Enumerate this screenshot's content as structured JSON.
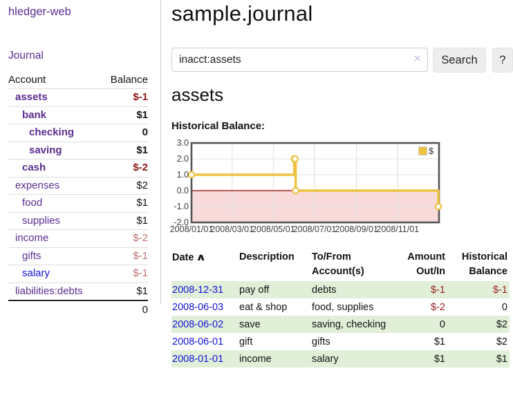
{
  "sidebar": {
    "brand": "hledger-web",
    "nav_journal": "Journal",
    "accounts_table": {
      "headers": [
        "Account",
        "Balance"
      ],
      "rows": [
        {
          "name": "assets",
          "balance": "$-1",
          "level": 1,
          "bold": true,
          "neg": "neg"
        },
        {
          "name": "bank",
          "balance": "$1",
          "level": 2,
          "bold": true,
          "neg": ""
        },
        {
          "name": "checking",
          "balance": "0",
          "level": 3,
          "bold": true,
          "neg": ""
        },
        {
          "name": "saving",
          "balance": "$1",
          "level": 3,
          "bold": true,
          "neg": ""
        },
        {
          "name": "cash",
          "balance": "$-2",
          "level": 2,
          "bold": true,
          "neg": "neg"
        },
        {
          "name": "expenses",
          "balance": "$2",
          "level": 1,
          "bold": false,
          "neg": ""
        },
        {
          "name": "food",
          "balance": "$1",
          "level": 2,
          "bold": false,
          "neg": ""
        },
        {
          "name": "supplies",
          "balance": "$1",
          "level": 2,
          "bold": false,
          "neg": ""
        },
        {
          "name": "income",
          "balance": "$-2",
          "level": 1,
          "bold": false,
          "neg": "negmuted"
        },
        {
          "name": "gifts",
          "balance": "$-1",
          "level": 2,
          "bold": false,
          "neg": "negmuted"
        },
        {
          "name": "salary",
          "balance": "$-1",
          "level": 2,
          "bold": false,
          "neg": "negmuted",
          "unvisited": true
        },
        {
          "name": "liabilities:debts",
          "balance": "$1",
          "level": 1,
          "bold": false,
          "neg": ""
        }
      ],
      "total": "0"
    }
  },
  "header": {
    "title": "sample.journal"
  },
  "search": {
    "value": "inacct:assets",
    "clear_icon": "✕",
    "button_label": "Search",
    "help_label": "?"
  },
  "account_page": {
    "title": "assets",
    "chart_heading": "Historical Balance:"
  },
  "chart_data": {
    "type": "line",
    "title": "Historical Balance",
    "step": true,
    "series": [
      {
        "name": "$",
        "color": "#EDC240",
        "points": [
          [
            "2008-01-01",
            1
          ],
          [
            "2008-06-01",
            2
          ],
          [
            "2008-06-02",
            2
          ],
          [
            "2008-06-03",
            0
          ],
          [
            "2008-12-31",
            -1
          ]
        ]
      }
    ],
    "x_range": [
      "2008-01-01",
      "2009-01-01"
    ],
    "x_ticks": [
      "2008/01/01",
      "2008/03/01",
      "2008/05/01",
      "2008/07/01",
      "2008/09/01",
      "2008/11/01"
    ],
    "y_ticks": [
      "3.0",
      "2.0",
      "1.0",
      "0.0",
      "-1.0",
      "-2.0"
    ],
    "ylim": [
      -2,
      3
    ],
    "grid": true,
    "legend": "$",
    "legend_position": "top-right",
    "negative_region_fill": "#f8dada",
    "zero_line_color": "#8b0000",
    "border_color": "#545454",
    "gridline_color": "#e3e3e3"
  },
  "register": {
    "headers": [
      "Date",
      "Description",
      "To/From Account(s)",
      "Amount Out/In",
      "Historical Balance"
    ],
    "sort_icon": "∧",
    "rows": [
      {
        "date": "2008-12-31",
        "description": "pay off",
        "accounts": "debts",
        "amount": "$-1",
        "amount_neg": true,
        "balance": "$-1",
        "balance_neg": true
      },
      {
        "date": "2008-06-03",
        "description": "eat & shop",
        "accounts": "food, supplies",
        "amount": "$-2",
        "amount_neg": true,
        "balance": "0",
        "balance_neg": false
      },
      {
        "date": "2008-06-02",
        "description": "save",
        "accounts": "saving, checking",
        "amount": "0",
        "amount_neg": false,
        "balance": "$2",
        "balance_neg": false
      },
      {
        "date": "2008-06-01",
        "description": "gift",
        "accounts": "gifts",
        "amount": "$1",
        "amount_neg": false,
        "balance": "$2",
        "balance_neg": false
      },
      {
        "date": "2008-01-01",
        "description": "income",
        "accounts": "salary",
        "amount": "$1",
        "amount_neg": false,
        "balance": "$1",
        "balance_neg": false
      }
    ]
  }
}
